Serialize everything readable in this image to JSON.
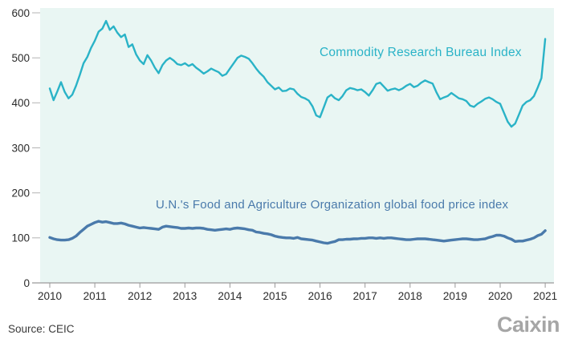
{
  "chart_data": {
    "type": "line",
    "title": "",
    "xlabel": "",
    "ylabel": "",
    "x_unit": "monthly, Jan 2010 - Jan 2021",
    "ylim": [
      0,
      600
    ],
    "y_ticks": [
      600,
      500,
      400,
      300,
      200,
      100,
      0
    ],
    "x_ticks": [
      "2010",
      "2011",
      "2012",
      "2013",
      "2014",
      "2015",
      "2016",
      "2017",
      "2018",
      "2019",
      "2020",
      "2021"
    ],
    "grid": false,
    "legend_position": "inline-annotations",
    "plot_bg": "#e9f6f3",
    "axis_color": "#9a9a9a",
    "tick_color": "#b3b3b3",
    "tick_label_color": "#2b2b2b",
    "series": [
      {
        "name": "Commodity Research Bureau Index",
        "color": "#2ab3c7",
        "values": [
          432,
          406,
          425,
          446,
          424,
          410,
          418,
          438,
          462,
          488,
          502,
          522,
          538,
          558,
          565,
          582,
          562,
          570,
          556,
          546,
          552,
          524,
          530,
          508,
          494,
          486,
          506,
          494,
          478,
          466,
          484,
          494,
          500,
          494,
          486,
          484,
          488,
          482,
          486,
          478,
          472,
          465,
          470,
          476,
          472,
          468,
          460,
          464,
          476,
          488,
          500,
          505,
          502,
          498,
          488,
          476,
          466,
          458,
          446,
          438,
          430,
          434,
          426,
          427,
          432,
          430,
          420,
          413,
          410,
          405,
          392,
          372,
          368,
          390,
          412,
          418,
          410,
          406,
          415,
          428,
          433,
          431,
          428,
          430,
          424,
          416,
          428,
          442,
          445,
          436,
          427,
          430,
          432,
          428,
          432,
          438,
          442,
          435,
          438,
          445,
          450,
          446,
          443,
          424,
          408,
          412,
          415,
          422,
          416,
          410,
          408,
          404,
          394,
          391,
          398,
          403,
          409,
          412,
          408,
          402,
          398,
          378,
          358,
          347,
          354,
          374,
          394,
          402,
          406,
          415,
          434,
          455,
          542
        ]
      },
      {
        "name": "U.N.'s Food and Agriculture Organization global food price index",
        "color": "#4a7aab",
        "values": [
          101,
          98,
          96,
          95,
          95,
          96,
          99,
          104,
          112,
          119,
          126,
          130,
          134,
          137,
          135,
          136,
          134,
          132,
          132,
          133,
          131,
          128,
          126,
          124,
          122,
          123,
          122,
          121,
          120,
          119,
          124,
          126,
          125,
          124,
          123,
          121,
          121,
          122,
          121,
          122,
          122,
          121,
          119,
          118,
          117,
          118,
          119,
          120,
          119,
          121,
          122,
          121,
          120,
          118,
          117,
          113,
          112,
          110,
          109,
          107,
          104,
          102,
          101,
          100,
          100,
          99,
          101,
          98,
          97,
          96,
          95,
          93,
          91,
          89,
          88,
          90,
          92,
          96,
          96,
          97,
          97,
          98,
          98,
          99,
          99,
          100,
          100,
          99,
          100,
          99,
          100,
          100,
          99,
          98,
          97,
          96,
          96,
          97,
          98,
          98,
          98,
          97,
          96,
          95,
          94,
          93,
          94,
          95,
          96,
          97,
          98,
          98,
          97,
          96,
          96,
          97,
          98,
          101,
          103,
          106,
          106,
          104,
          100,
          97,
          92,
          93,
          93,
          95,
          97,
          100,
          105,
          108,
          116
        ]
      }
    ]
  },
  "annotations": {
    "crb_label": "Commodity Research Bureau Index",
    "fao_label": "U.N.'s Food and Agriculture Organization global food price index"
  },
  "footer": {
    "source": "Source: CEIC",
    "logo": "Caixin"
  }
}
